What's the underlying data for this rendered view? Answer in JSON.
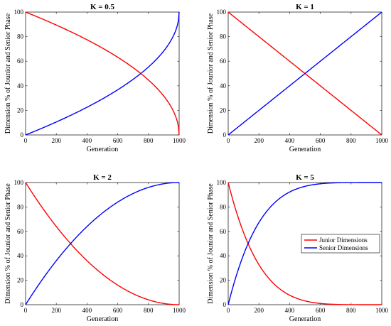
{
  "chart_data": [
    {
      "type": "line",
      "title": "K = 0.5",
      "k": 0.5,
      "xlabel": "Generation",
      "ylabel": "Dimension % of Jounior and Senior Phase",
      "xlim": [
        0,
        1000
      ],
      "ylim": [
        0,
        100
      ],
      "xticks": [
        0,
        200,
        400,
        600,
        800,
        1000
      ],
      "yticks": [
        0,
        20,
        40,
        60,
        80,
        100
      ],
      "series": [
        {
          "color": "#ff0000",
          "x": [
            0,
            100,
            200,
            300,
            400,
            500,
            600,
            700,
            800,
            900,
            950,
            1000
          ],
          "y": [
            100,
            94.9,
            89.4,
            83.7,
            77.5,
            70.7,
            63.2,
            54.8,
            44.7,
            31.6,
            22.4,
            0
          ]
        },
        {
          "color": "#0000ff",
          "x": [
            0,
            100,
            200,
            300,
            400,
            500,
            600,
            700,
            800,
            900,
            950,
            1000
          ],
          "y": [
            0,
            5.1,
            10.6,
            16.3,
            22.5,
            29.3,
            36.8,
            45.2,
            55.3,
            68.4,
            77.6,
            100
          ]
        }
      ]
    },
    {
      "type": "line",
      "title": "K = 1",
      "k": 1,
      "xlabel": "Generation",
      "ylabel": "Dimension % of Jounior and Senior Phase",
      "xlim": [
        0,
        1000
      ],
      "ylim": [
        0,
        100
      ],
      "xticks": [
        0,
        200,
        400,
        600,
        800,
        1000
      ],
      "yticks": [
        0,
        20,
        40,
        60,
        80,
        100
      ],
      "series": [
        {
          "color": "#ff0000",
          "x": [
            0,
            200,
            400,
            600,
            800,
            1000
          ],
          "y": [
            100,
            80,
            60,
            40,
            20,
            0
          ]
        },
        {
          "color": "#0000ff",
          "x": [
            0,
            200,
            400,
            600,
            800,
            1000
          ],
          "y": [
            0,
            20,
            40,
            60,
            80,
            100
          ]
        }
      ]
    },
    {
      "type": "line",
      "title": "K = 2",
      "k": 2,
      "xlabel": "Generation",
      "ylabel": "Dimension % of Jounior and Senior Phase",
      "xlim": [
        0,
        1000
      ],
      "ylim": [
        0,
        100
      ],
      "xticks": [
        0,
        200,
        400,
        600,
        800,
        1000
      ],
      "yticks": [
        0,
        20,
        40,
        60,
        80,
        100
      ],
      "series": [
        {
          "color": "#ff0000",
          "x": [
            0,
            100,
            200,
            300,
            400,
            500,
            600,
            700,
            800,
            900,
            1000
          ],
          "y": [
            100,
            81,
            64,
            49,
            36,
            25,
            16,
            9,
            4,
            1,
            0
          ]
        },
        {
          "color": "#0000ff",
          "x": [
            0,
            100,
            200,
            300,
            400,
            500,
            600,
            700,
            800,
            900,
            1000
          ],
          "y": [
            0,
            19,
            36,
            51,
            64,
            75,
            84,
            91,
            96,
            99,
            100
          ]
        }
      ]
    },
    {
      "type": "line",
      "title": "K = 5",
      "k": 5,
      "xlabel": "Generation",
      "ylabel": "Dimension % of Jounior and Senior Phase",
      "xlim": [
        0,
        1000
      ],
      "ylim": [
        0,
        100
      ],
      "xticks": [
        0,
        200,
        400,
        600,
        800,
        1000
      ],
      "yticks": [
        0,
        20,
        40,
        60,
        80,
        100
      ],
      "legend": "center-right",
      "series": [
        {
          "name": "Junior Dimensions",
          "color": "#ff0000",
          "x": [
            0,
            50,
            100,
            150,
            200,
            300,
            400,
            500,
            600,
            700,
            800,
            1000
          ],
          "y": [
            100,
            77.4,
            59,
            44.4,
            32.8,
            16.8,
            7.8,
            3.1,
            1,
            0.2,
            0,
            0
          ]
        },
        {
          "name": "Senior Dimensions",
          "color": "#0000ff",
          "x": [
            0,
            50,
            100,
            150,
            200,
            300,
            400,
            500,
            600,
            700,
            800,
            1000
          ],
          "y": [
            0,
            22.6,
            41,
            55.6,
            67.2,
            83.2,
            92.2,
            96.9,
            99,
            99.8,
            100,
            100
          ]
        }
      ]
    }
  ]
}
